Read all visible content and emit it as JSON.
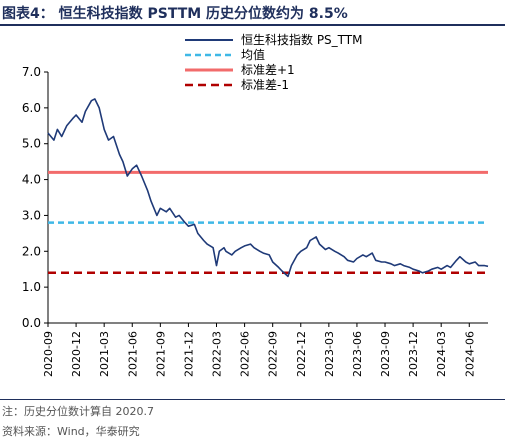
{
  "title": "图表4：  恒生科技指数 PSTTM 历史分位数约为 8.5%",
  "notes": {
    "note": "注：历史分位数计算自 2020.7",
    "source": "资料来源：Wind，华泰研究"
  },
  "chart_data": {
    "type": "line",
    "ylim": [
      0,
      7
    ],
    "yticks": [
      "0.0",
      "1.0",
      "2.0",
      "3.0",
      "4.0",
      "5.0",
      "6.0",
      "7.0"
    ],
    "xticks": [
      "2020-09",
      "2020-12",
      "2021-03",
      "2021-06",
      "2021-09",
      "2021-12",
      "2022-03",
      "2022-06",
      "2022-09",
      "2022-12",
      "2023-03",
      "2023-06",
      "2023-09",
      "2023-12",
      "2024-03",
      "2024-06"
    ],
    "xlim": [
      "2020-09",
      "2024-08"
    ],
    "legend_position": "top-right",
    "series": [
      {
        "name": "恒生科技指数 PS_TTM",
        "color": "#1f3a78",
        "style": "solid",
        "points": [
          [
            "2020-09",
            5.3
          ],
          [
            "2020-09-20",
            5.1
          ],
          [
            "2020-10",
            5.4
          ],
          [
            "2020-10-15",
            5.2
          ],
          [
            "2020-11",
            5.5
          ],
          [
            "2020-11-20",
            5.7
          ],
          [
            "2020-12",
            5.8
          ],
          [
            "2020-12-20",
            5.6
          ],
          [
            "2021-01",
            5.9
          ],
          [
            "2021-01-20",
            6.2
          ],
          [
            "2021-02",
            6.25
          ],
          [
            "2021-02-15",
            6.0
          ],
          [
            "2021-03",
            5.4
          ],
          [
            "2021-03-15",
            5.1
          ],
          [
            "2021-04",
            5.2
          ],
          [
            "2021-04-20",
            4.7
          ],
          [
            "2021-05",
            4.5
          ],
          [
            "2021-05-15",
            4.1
          ],
          [
            "2021-06",
            4.3
          ],
          [
            "2021-06-15",
            4.4
          ],
          [
            "2021-07",
            4.1
          ],
          [
            "2021-07-20",
            3.7
          ],
          [
            "2021-08",
            3.4
          ],
          [
            "2021-08-20",
            3.0
          ],
          [
            "2021-09",
            3.2
          ],
          [
            "2021-09-20",
            3.1
          ],
          [
            "2021-10",
            3.2
          ],
          [
            "2021-10-20",
            2.95
          ],
          [
            "2021-11",
            3.0
          ],
          [
            "2021-11-20",
            2.8
          ],
          [
            "2021-12",
            2.7
          ],
          [
            "2021-12-20",
            2.75
          ],
          [
            "2022-01",
            2.5
          ],
          [
            "2022-01-20",
            2.3
          ],
          [
            "2022-02",
            2.2
          ],
          [
            "2022-02-20",
            2.1
          ],
          [
            "2022-03",
            1.6
          ],
          [
            "2022-03-10",
            2.0
          ],
          [
            "2022-03-25",
            2.1
          ],
          [
            "2022-04",
            2.0
          ],
          [
            "2022-04-20",
            1.9
          ],
          [
            "2022-05",
            2.0
          ],
          [
            "2022-05-20",
            2.1
          ],
          [
            "2022-06",
            2.15
          ],
          [
            "2022-06-20",
            2.2
          ],
          [
            "2022-07",
            2.1
          ],
          [
            "2022-07-20",
            2.0
          ],
          [
            "2022-08",
            1.95
          ],
          [
            "2022-08-20",
            1.9
          ],
          [
            "2022-09",
            1.7
          ],
          [
            "2022-09-20",
            1.55
          ],
          [
            "2022-10",
            1.45
          ],
          [
            "2022-10-20",
            1.3
          ],
          [
            "2022-11",
            1.6
          ],
          [
            "2022-11-20",
            1.9
          ],
          [
            "2022-12",
            2.0
          ],
          [
            "2022-12-20",
            2.1
          ],
          [
            "2023-01",
            2.3
          ],
          [
            "2023-01-20",
            2.4
          ],
          [
            "2023-02",
            2.2
          ],
          [
            "2023-02-20",
            2.05
          ],
          [
            "2023-03",
            2.1
          ],
          [
            "2023-03-20",
            2.0
          ],
          [
            "2023-04",
            1.95
          ],
          [
            "2023-04-20",
            1.85
          ],
          [
            "2023-05",
            1.75
          ],
          [
            "2023-05-20",
            1.7
          ],
          [
            "2023-06",
            1.8
          ],
          [
            "2023-06-20",
            1.9
          ],
          [
            "2023-07",
            1.85
          ],
          [
            "2023-07-20",
            1.95
          ],
          [
            "2023-08",
            1.75
          ],
          [
            "2023-08-20",
            1.7
          ],
          [
            "2023-09",
            1.7
          ],
          [
            "2023-09-20",
            1.65
          ],
          [
            "2023-10",
            1.6
          ],
          [
            "2023-10-20",
            1.65
          ],
          [
            "2023-11",
            1.6
          ],
          [
            "2023-11-20",
            1.55
          ],
          [
            "2023-12",
            1.5
          ],
          [
            "2023-12-20",
            1.45
          ],
          [
            "2024-01",
            1.4
          ],
          [
            "2024-01-20",
            1.45
          ],
          [
            "2024-02",
            1.5
          ],
          [
            "2024-02-20",
            1.55
          ],
          [
            "2024-03",
            1.5
          ],
          [
            "2024-03-20",
            1.6
          ],
          [
            "2024-04",
            1.55
          ],
          [
            "2024-04-20",
            1.75
          ],
          [
            "2024-05",
            1.85
          ],
          [
            "2024-05-20",
            1.7
          ],
          [
            "2024-06",
            1.65
          ],
          [
            "2024-06-20",
            1.7
          ],
          [
            "2024-07",
            1.6
          ],
          [
            "2024-07-20",
            1.6
          ],
          [
            "2024-08",
            1.58
          ]
        ]
      },
      {
        "name": "均值",
        "color": "#3fb8e6",
        "style": "dashed",
        "value": 2.8
      },
      {
        "name": "标准差+1",
        "color": "#f26b6b",
        "style": "solid",
        "value": 4.2
      },
      {
        "name": "标准差-1",
        "color": "#b00000",
        "style": "dashed",
        "value": 1.4
      }
    ]
  }
}
